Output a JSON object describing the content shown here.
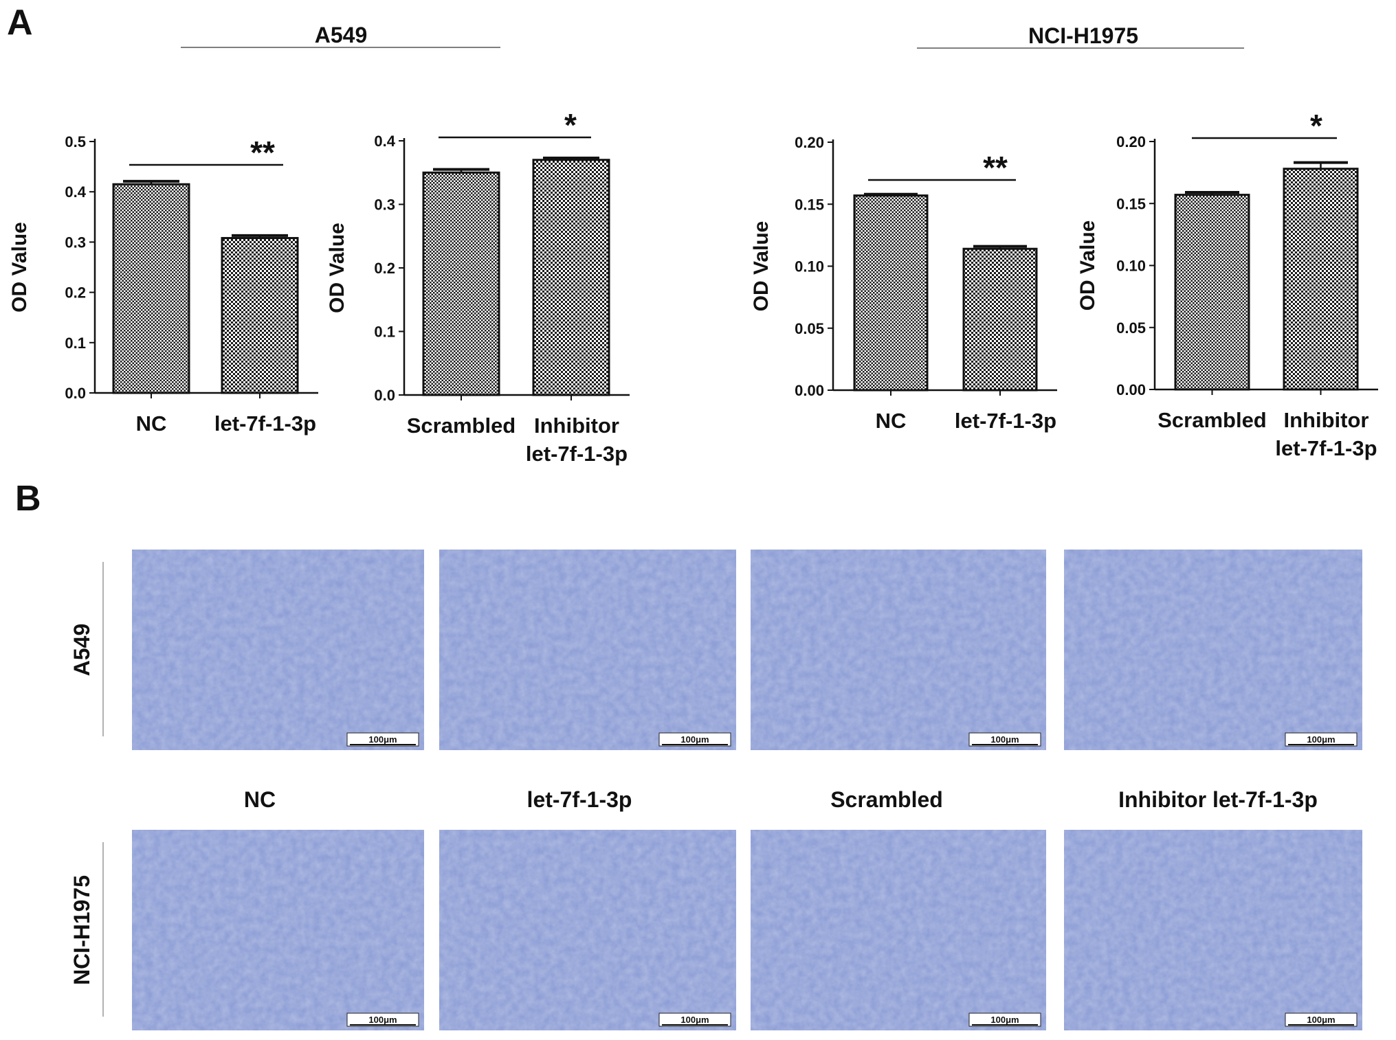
{
  "panel_a_label": "A",
  "panel_b_label": "B",
  "groups": [
    "A549",
    "NCI-H1975"
  ],
  "chart_data": [
    {
      "type": "bar",
      "group": "A549",
      "categories": [
        [
          "NC"
        ],
        [
          "let-7f-1-3p"
        ]
      ],
      "values": [
        0.415,
        0.308
      ],
      "errors": [
        0.006,
        0.005
      ],
      "ylabel": "OD Value",
      "ylim": [
        0,
        0.5
      ],
      "yticks": [
        "0.0",
        "0.1",
        "0.2",
        "0.3",
        "0.4",
        "0.5"
      ],
      "significance": "**"
    },
    {
      "type": "bar",
      "group": "A549",
      "categories": [
        [
          "Scrambled"
        ],
        [
          "Inhibitor",
          "let-7f-1-3p"
        ]
      ],
      "values": [
        0.35,
        0.37
      ],
      "errors": [
        0.005,
        0.003
      ],
      "ylabel": "OD Value",
      "ylim": [
        0,
        0.4
      ],
      "yticks": [
        "0.0",
        "0.1",
        "0.2",
        "0.3",
        "0.4"
      ],
      "significance": "*"
    },
    {
      "type": "bar",
      "group": "NCI-H1975",
      "categories": [
        [
          "NC"
        ],
        [
          "let-7f-1-3p"
        ]
      ],
      "values": [
        0.157,
        0.114
      ],
      "errors": [
        0.001,
        0.002
      ],
      "ylabel": "OD Value",
      "ylim": [
        0,
        0.2
      ],
      "yticks": [
        "0.00",
        "0.05",
        "0.10",
        "0.15",
        "0.20"
      ],
      "significance": "**"
    },
    {
      "type": "bar",
      "group": "NCI-H1975",
      "categories": [
        [
          "Scrambled"
        ],
        [
          "Inhibitor",
          "let-7f-1-3p"
        ]
      ],
      "values": [
        0.157,
        0.178
      ],
      "errors": [
        0.002,
        0.005
      ],
      "ylabel": "OD Value",
      "ylim": [
        0,
        0.2
      ],
      "yticks": [
        "0.00",
        "0.05",
        "0.10",
        "0.15",
        "0.20"
      ],
      "significance": "*"
    }
  ],
  "micrographs": {
    "rows": [
      "A549",
      "NCI-H1975"
    ],
    "columns": [
      "NC",
      "let-7f-1-3p",
      "Scrambled",
      "Inhibitor let-7f-1-3p"
    ],
    "scale_bar": "100μm",
    "tint": "#8f9fd6"
  }
}
